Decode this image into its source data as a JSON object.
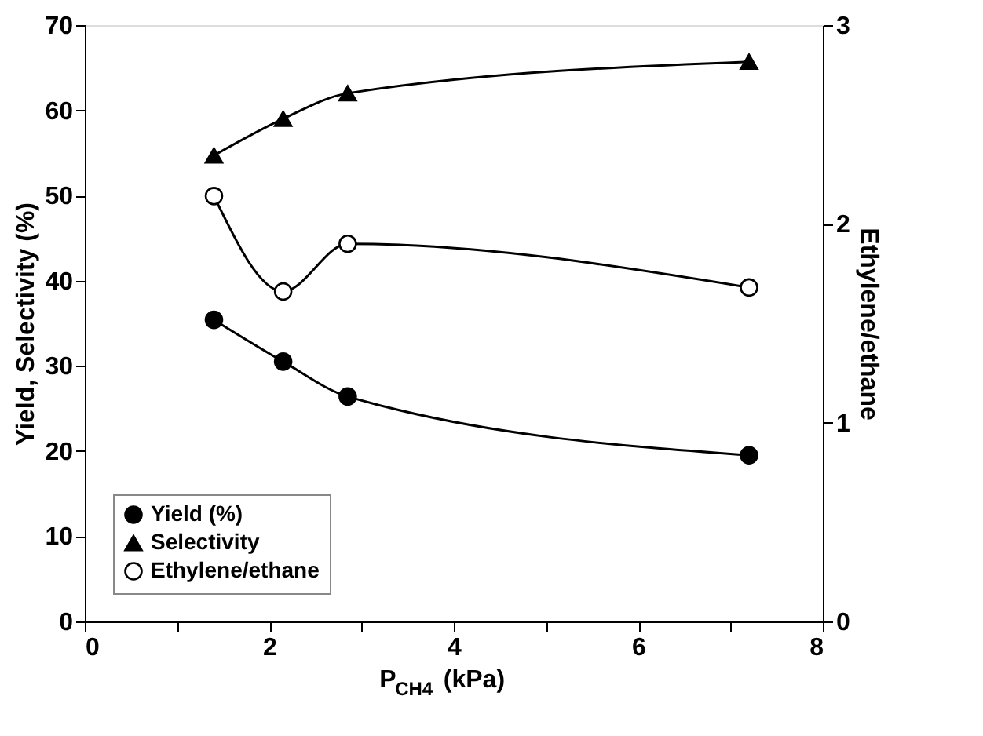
{
  "chart_data": {
    "type": "line",
    "xlabel": "P$_{CH4}$ (kPa)",
    "ylabel": "Yield, Selectivity (%)",
    "y2label": "Ethylene/ethane",
    "x": [
      1.4,
      2.15,
      2.85,
      7.2
    ],
    "xlim": [
      0,
      8
    ],
    "xticks": [
      0,
      {
        "value": 1,
        "label": null
      },
      2,
      {
        "value": 3,
        "label": null
      },
      4,
      {
        "value": 5,
        "label": null
      },
      6,
      {
        "value": 7,
        "label": null
      },
      8
    ],
    "ylim": [
      0,
      70
    ],
    "yticks": [
      0,
      10,
      20,
      30,
      40,
      50,
      60,
      70
    ],
    "y2lim": [
      0,
      3
    ],
    "y2ticks": [
      0,
      1,
      2,
      3
    ],
    "grid": false,
    "legend": "bottom left",
    "line_style": "solid",
    "series": [
      {
        "name": "Yield (%)",
        "color": "#000000",
        "marker": "circle",
        "values": [
          35.4,
          30.5,
          26.4,
          19.5
        ]
      },
      {
        "name": "Selectivity",
        "color": "#000000",
        "marker": "triangle",
        "values": [
          54.7,
          59.0,
          62.0,
          65.7
        ]
      },
      {
        "name": "Ethylene/ethane",
        "color": "#000000",
        "marker": "circle",
        "axis": "y2",
        "values": [
          2.14,
          1.66,
          1.9,
          1.68
        ]
      }
    ]
  }
}
